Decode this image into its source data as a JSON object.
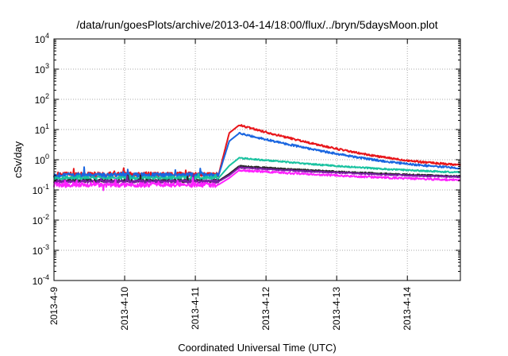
{
  "chart_data": {
    "type": "line",
    "title": "/data/run/goesPlots/archive/2013-04-14/18:00/flux/../bryn/5daysMoon.plot",
    "xlabel": "Coordinated Universal Time (UTC)",
    "ylabel": "cSv/day",
    "x_range": [
      "2013-04-09T00:00",
      "2013-04-14T18:00"
    ],
    "x_ticks": [
      "2013-4-9",
      "2013-4-10",
      "2013-4-11",
      "2013-4-12",
      "2013-4-13",
      "2013-4-14"
    ],
    "y_scale": "log",
    "ylim": [
      0.0001,
      10000
    ],
    "y_ticks": [
      {
        "base": "10",
        "exp": "4"
      },
      {
        "base": "10",
        "exp": "3"
      },
      {
        "base": "10",
        "exp": "2"
      },
      {
        "base": "10",
        "exp": "1"
      },
      {
        "base": "10",
        "exp": "0"
      },
      {
        "base": "10",
        "exp": "-1"
      },
      {
        "base": "10",
        "exp": "-2"
      },
      {
        "base": "10",
        "exp": "-3"
      },
      {
        "base": "10",
        "exp": "-4"
      }
    ],
    "grid": true,
    "series": [
      {
        "color": "#e8161b",
        "baseline": 0.33,
        "peak": 14.0,
        "end": 0.55,
        "noise": 0.08
      },
      {
        "color": "#1a66e0",
        "baseline": 0.31,
        "peak": 7.5,
        "end": 0.42,
        "noise": 0.08
      },
      {
        "color": "#19c2a0",
        "baseline": 0.25,
        "peak": 1.15,
        "end": 0.27,
        "noise": 0.06
      },
      {
        "color": "#2a2a2a",
        "baseline": 0.2,
        "peak": 0.62,
        "end": 0.2,
        "noise": 0.05
      },
      {
        "color": "#7a1fa2",
        "baseline": 0.19,
        "peak": 0.55,
        "end": 0.19,
        "noise": 0.05
      },
      {
        "color": "#ff22ff",
        "baseline": 0.15,
        "peak": 0.45,
        "end": 0.15,
        "noise": 0.08
      }
    ]
  }
}
